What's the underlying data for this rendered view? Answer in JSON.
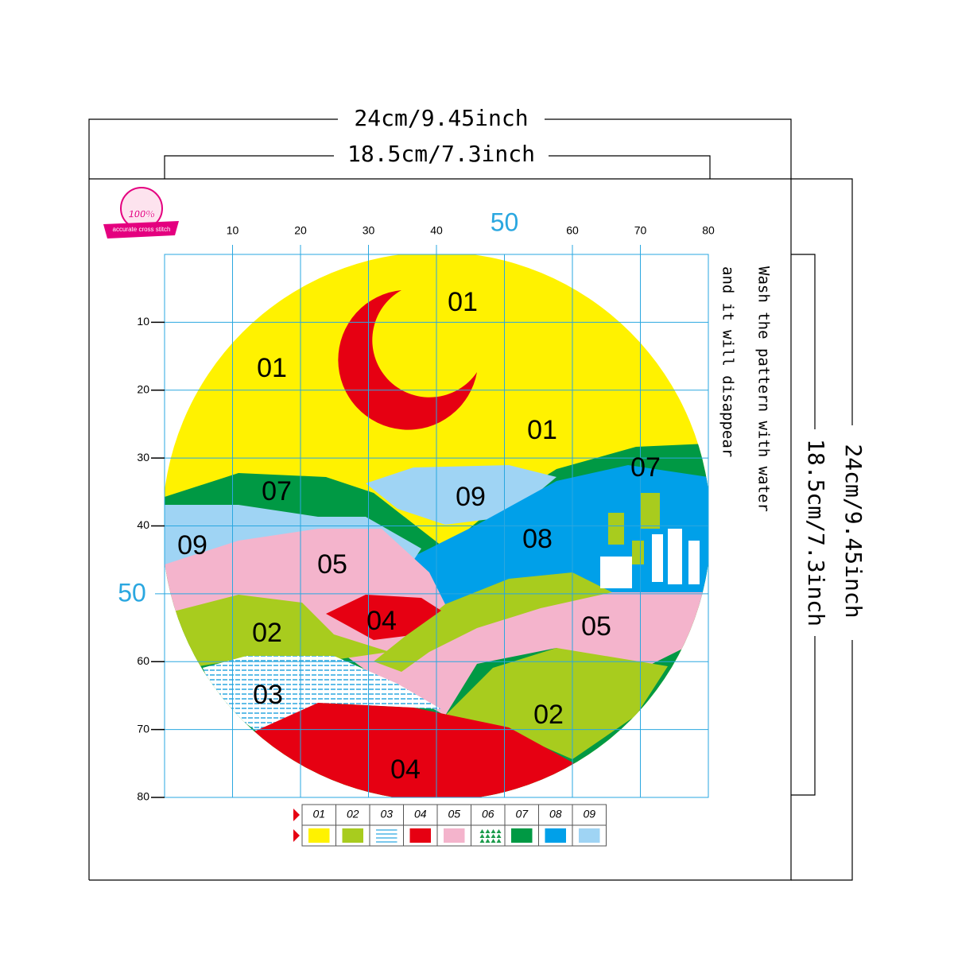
{
  "dimensions": {
    "outer_width": "24cm/9.45inch",
    "inner_width": "18.5cm/7.3inch",
    "outer_height": "24cm/9.45inch",
    "inner_height": "18.5cm/7.3inch"
  },
  "badge": {
    "percent": "100%",
    "text": "accurate cross stitch"
  },
  "grid": {
    "top_ticks": [
      "10",
      "20",
      "30",
      "40",
      "60",
      "70",
      "80"
    ],
    "left_ticks": [
      "10",
      "20",
      "30",
      "40",
      "60",
      "70",
      "80"
    ],
    "top_center": "50",
    "left_center": "50"
  },
  "note": [
    "Wash the pattern with water",
    "and it will disappear"
  ],
  "regions": [
    {
      "label": "01"
    },
    {
      "label": "01"
    },
    {
      "label": "01"
    },
    {
      "label": "07"
    },
    {
      "label": "07"
    },
    {
      "label": "09"
    },
    {
      "label": "09"
    },
    {
      "label": "08"
    },
    {
      "label": "05"
    },
    {
      "label": "05"
    },
    {
      "label": "04"
    },
    {
      "label": "04"
    },
    {
      "label": "02"
    },
    {
      "label": "02"
    },
    {
      "label": "03"
    }
  ],
  "legend": [
    {
      "code": "01",
      "color": "#fff200"
    },
    {
      "code": "02",
      "color": "#a8cc1e"
    },
    {
      "code": "03",
      "color": "#2aa7e0",
      "pattern": "stripes"
    },
    {
      "code": "04",
      "color": "#e60012"
    },
    {
      "code": "05",
      "color": "#f4b4cc"
    },
    {
      "code": "06",
      "color": "#1a9a4a",
      "pattern": "triangles"
    },
    {
      "code": "07",
      "color": "#009944"
    },
    {
      "code": "08",
      "color": "#00a0e9"
    },
    {
      "code": "09",
      "color": "#9fd4f4"
    }
  ]
}
